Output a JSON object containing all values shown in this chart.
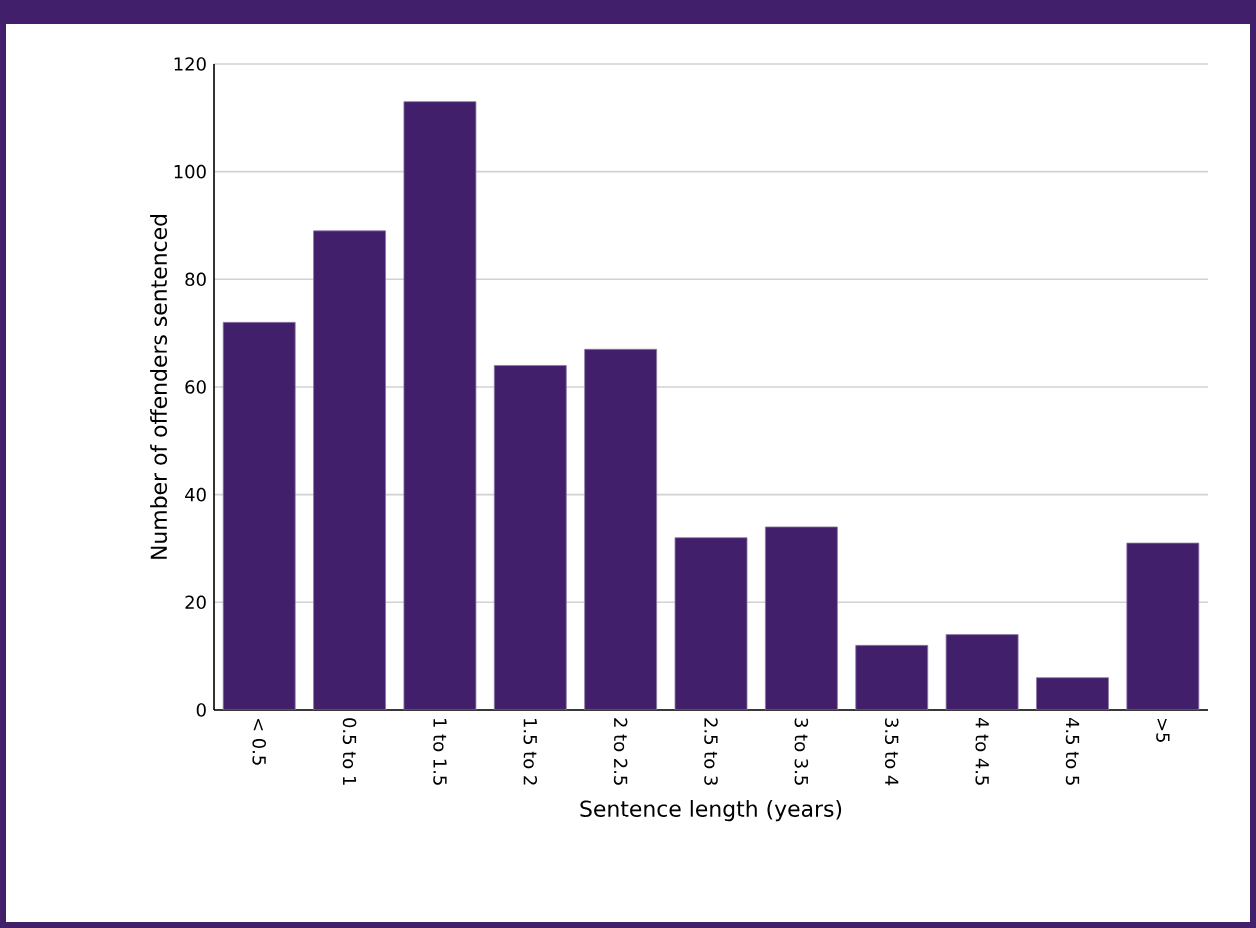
{
  "chart_data": {
    "type": "bar",
    "xlabel": "Sentence length (years)",
    "ylabel": "Number of offenders sentenced",
    "categories": [
      "< 0.5",
      "0.5 to 1",
      "1 to 1.5",
      "1.5 to 2",
      "2 to 2.5",
      "2.5 to 3",
      "3 to 3.5",
      "3.5 to 4",
      "4 to 4.5",
      "4.5 to 5",
      ">5"
    ],
    "values": [
      72,
      89,
      113,
      64,
      67,
      32,
      34,
      12,
      14,
      6,
      31
    ],
    "color": "#421f6a",
    "ylim": [
      0,
      120
    ],
    "yticks": [
      0,
      20,
      40,
      60,
      80,
      100,
      120
    ],
    "grid": "y"
  }
}
